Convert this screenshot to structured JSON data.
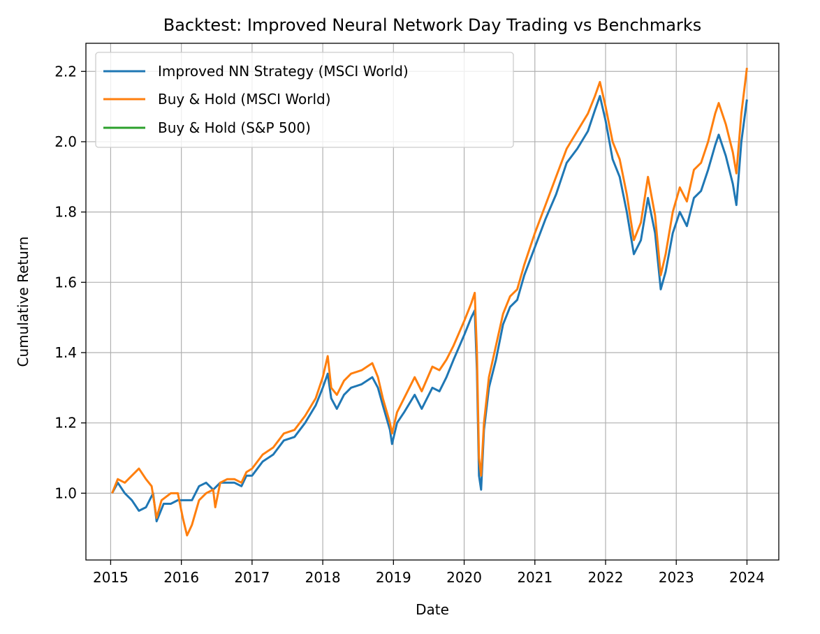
{
  "chart_data": {
    "type": "line",
    "title": "Backtest: Improved Neural Network Day Trading vs Benchmarks",
    "xlabel": "Date",
    "ylabel": "Cumulative Return",
    "xlim": [
      2014.65,
      2024.45
    ],
    "ylim": [
      0.81,
      2.28
    ],
    "x_ticks": [
      2015,
      2016,
      2017,
      2018,
      2019,
      2020,
      2021,
      2022,
      2023,
      2024
    ],
    "x_tick_labels": [
      "2015",
      "2016",
      "2017",
      "2018",
      "2019",
      "2020",
      "2021",
      "2022",
      "2023",
      "2024"
    ],
    "y_ticks": [
      1.0,
      1.2,
      1.4,
      1.6,
      1.8,
      2.0,
      2.2
    ],
    "y_tick_labels": [
      "1.0",
      "1.2",
      "1.4",
      "1.6",
      "1.8",
      "2.0",
      "2.2"
    ],
    "grid": true,
    "legend_position": "upper-left",
    "series": [
      {
        "name": "Improved NN Strategy (MSCI World)",
        "color": "#1f77b4",
        "points": [
          [
            2015.02,
            1.0
          ],
          [
            2015.1,
            1.03
          ],
          [
            2015.2,
            1.0
          ],
          [
            2015.3,
            0.98
          ],
          [
            2015.4,
            0.95
          ],
          [
            2015.5,
            0.96
          ],
          [
            2015.6,
            1.0
          ],
          [
            2015.65,
            0.92
          ],
          [
            2015.75,
            0.97
          ],
          [
            2015.85,
            0.97
          ],
          [
            2015.95,
            0.98
          ],
          [
            2016.05,
            0.98
          ],
          [
            2016.15,
            0.98
          ],
          [
            2016.25,
            1.02
          ],
          [
            2016.35,
            1.03
          ],
          [
            2016.45,
            1.01
          ],
          [
            2016.55,
            1.03
          ],
          [
            2016.65,
            1.03
          ],
          [
            2016.75,
            1.03
          ],
          [
            2016.85,
            1.02
          ],
          [
            2016.92,
            1.05
          ],
          [
            2017.0,
            1.05
          ],
          [
            2017.15,
            1.09
          ],
          [
            2017.3,
            1.11
          ],
          [
            2017.45,
            1.15
          ],
          [
            2017.6,
            1.16
          ],
          [
            2017.75,
            1.2
          ],
          [
            2017.9,
            1.25
          ],
          [
            2018.0,
            1.3
          ],
          [
            2018.07,
            1.34
          ],
          [
            2018.12,
            1.27
          ],
          [
            2018.2,
            1.24
          ],
          [
            2018.3,
            1.28
          ],
          [
            2018.4,
            1.3
          ],
          [
            2018.55,
            1.31
          ],
          [
            2018.7,
            1.33
          ],
          [
            2018.78,
            1.3
          ],
          [
            2018.85,
            1.25
          ],
          [
            2018.95,
            1.18
          ],
          [
            2018.98,
            1.14
          ],
          [
            2019.05,
            1.2
          ],
          [
            2019.15,
            1.23
          ],
          [
            2019.3,
            1.28
          ],
          [
            2019.4,
            1.24
          ],
          [
            2019.55,
            1.3
          ],
          [
            2019.65,
            1.29
          ],
          [
            2019.75,
            1.33
          ],
          [
            2019.85,
            1.38
          ],
          [
            2020.0,
            1.45
          ],
          [
            2020.1,
            1.5
          ],
          [
            2020.15,
            1.52
          ],
          [
            2020.18,
            1.35
          ],
          [
            2020.21,
            1.05
          ],
          [
            2020.24,
            1.01
          ],
          [
            2020.28,
            1.18
          ],
          [
            2020.35,
            1.3
          ],
          [
            2020.45,
            1.38
          ],
          [
            2020.55,
            1.48
          ],
          [
            2020.65,
            1.53
          ],
          [
            2020.75,
            1.55
          ],
          [
            2020.85,
            1.62
          ],
          [
            2021.0,
            1.7
          ],
          [
            2021.15,
            1.78
          ],
          [
            2021.3,
            1.85
          ],
          [
            2021.45,
            1.94
          ],
          [
            2021.6,
            1.98
          ],
          [
            2021.75,
            2.03
          ],
          [
            2021.85,
            2.09
          ],
          [
            2021.92,
            2.13
          ],
          [
            2022.0,
            2.06
          ],
          [
            2022.1,
            1.95
          ],
          [
            2022.2,
            1.9
          ],
          [
            2022.3,
            1.8
          ],
          [
            2022.4,
            1.68
          ],
          [
            2022.5,
            1.72
          ],
          [
            2022.6,
            1.84
          ],
          [
            2022.7,
            1.74
          ],
          [
            2022.78,
            1.58
          ],
          [
            2022.85,
            1.63
          ],
          [
            2022.95,
            1.74
          ],
          [
            2023.05,
            1.8
          ],
          [
            2023.15,
            1.76
          ],
          [
            2023.25,
            1.84
          ],
          [
            2023.35,
            1.86
          ],
          [
            2023.45,
            1.92
          ],
          [
            2023.55,
            1.99
          ],
          [
            2023.6,
            2.02
          ],
          [
            2023.7,
            1.96
          ],
          [
            2023.8,
            1.88
          ],
          [
            2023.85,
            1.82
          ],
          [
            2023.92,
            2.0
          ],
          [
            2024.0,
            2.12
          ]
        ]
      },
      {
        "name": "Buy & Hold (MSCI World)",
        "color": "#ff7f0e",
        "points": [
          [
            2015.02,
            1.0
          ],
          [
            2015.1,
            1.04
          ],
          [
            2015.2,
            1.03
          ],
          [
            2015.3,
            1.05
          ],
          [
            2015.4,
            1.07
          ],
          [
            2015.5,
            1.04
          ],
          [
            2015.58,
            1.02
          ],
          [
            2015.65,
            0.93
          ],
          [
            2015.72,
            0.98
          ],
          [
            2015.85,
            1.0
          ],
          [
            2015.95,
            1.0
          ],
          [
            2016.02,
            0.93
          ],
          [
            2016.08,
            0.88
          ],
          [
            2016.15,
            0.91
          ],
          [
            2016.25,
            0.98
          ],
          [
            2016.35,
            1.0
          ],
          [
            2016.45,
            1.01
          ],
          [
            2016.48,
            0.96
          ],
          [
            2016.55,
            1.03
          ],
          [
            2016.65,
            1.04
          ],
          [
            2016.75,
            1.04
          ],
          [
            2016.85,
            1.03
          ],
          [
            2016.92,
            1.06
          ],
          [
            2017.0,
            1.07
          ],
          [
            2017.15,
            1.11
          ],
          [
            2017.3,
            1.13
          ],
          [
            2017.45,
            1.17
          ],
          [
            2017.6,
            1.18
          ],
          [
            2017.75,
            1.22
          ],
          [
            2017.9,
            1.27
          ],
          [
            2018.0,
            1.33
          ],
          [
            2018.07,
            1.39
          ],
          [
            2018.12,
            1.3
          ],
          [
            2018.2,
            1.28
          ],
          [
            2018.3,
            1.32
          ],
          [
            2018.4,
            1.34
          ],
          [
            2018.55,
            1.35
          ],
          [
            2018.7,
            1.37
          ],
          [
            2018.78,
            1.33
          ],
          [
            2018.85,
            1.27
          ],
          [
            2018.95,
            1.2
          ],
          [
            2018.98,
            1.17
          ],
          [
            2019.05,
            1.23
          ],
          [
            2019.15,
            1.27
          ],
          [
            2019.3,
            1.33
          ],
          [
            2019.4,
            1.29
          ],
          [
            2019.55,
            1.36
          ],
          [
            2019.65,
            1.35
          ],
          [
            2019.75,
            1.38
          ],
          [
            2019.85,
            1.42
          ],
          [
            2020.0,
            1.49
          ],
          [
            2020.1,
            1.54
          ],
          [
            2020.15,
            1.57
          ],
          [
            2020.18,
            1.4
          ],
          [
            2020.21,
            1.1
          ],
          [
            2020.24,
            1.05
          ],
          [
            2020.28,
            1.2
          ],
          [
            2020.35,
            1.33
          ],
          [
            2020.45,
            1.42
          ],
          [
            2020.55,
            1.51
          ],
          [
            2020.65,
            1.56
          ],
          [
            2020.75,
            1.58
          ],
          [
            2020.85,
            1.65
          ],
          [
            2021.0,
            1.74
          ],
          [
            2021.15,
            1.82
          ],
          [
            2021.3,
            1.9
          ],
          [
            2021.45,
            1.98
          ],
          [
            2021.6,
            2.03
          ],
          [
            2021.75,
            2.08
          ],
          [
            2021.85,
            2.13
          ],
          [
            2021.92,
            2.17
          ],
          [
            2022.0,
            2.1
          ],
          [
            2022.1,
            2.0
          ],
          [
            2022.2,
            1.95
          ],
          [
            2022.3,
            1.85
          ],
          [
            2022.4,
            1.72
          ],
          [
            2022.5,
            1.77
          ],
          [
            2022.6,
            1.9
          ],
          [
            2022.7,
            1.79
          ],
          [
            2022.78,
            1.62
          ],
          [
            2022.85,
            1.68
          ],
          [
            2022.95,
            1.8
          ],
          [
            2023.05,
            1.87
          ],
          [
            2023.15,
            1.83
          ],
          [
            2023.25,
            1.92
          ],
          [
            2023.35,
            1.94
          ],
          [
            2023.45,
            2.0
          ],
          [
            2023.55,
            2.08
          ],
          [
            2023.6,
            2.11
          ],
          [
            2023.7,
            2.05
          ],
          [
            2023.8,
            1.97
          ],
          [
            2023.85,
            1.91
          ],
          [
            2023.92,
            2.08
          ],
          [
            2024.0,
            2.21
          ]
        ]
      },
      {
        "name": "Buy & Hold (S&P 500)",
        "color": "#2ca02c",
        "points": []
      }
    ]
  }
}
